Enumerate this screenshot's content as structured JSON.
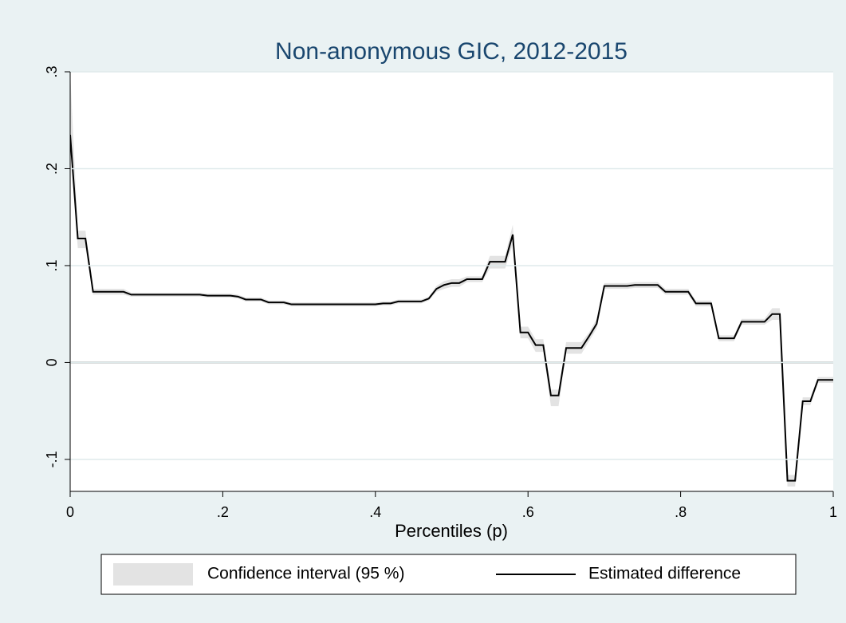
{
  "chart_data": {
    "type": "line",
    "title": "Non-anonymous GIC, 2012-2015",
    "x_label": "Percentiles (p)",
    "x": [
      0,
      0.01,
      0.02,
      0.03,
      0.04,
      0.05,
      0.06,
      0.07,
      0.08,
      0.09,
      0.1,
      0.11,
      0.12,
      0.13,
      0.14,
      0.15,
      0.16,
      0.17,
      0.18,
      0.19,
      0.2,
      0.21,
      0.22,
      0.23,
      0.24,
      0.25,
      0.26,
      0.27,
      0.28,
      0.29,
      0.3,
      0.31,
      0.32,
      0.33,
      0.34,
      0.35,
      0.36,
      0.37,
      0.38,
      0.39,
      0.4,
      0.41,
      0.42,
      0.43,
      0.44,
      0.45,
      0.46,
      0.47,
      0.48,
      0.49,
      0.5,
      0.51,
      0.52,
      0.53,
      0.54,
      0.55,
      0.56,
      0.57,
      0.58,
      0.59,
      0.6,
      0.61,
      0.62,
      0.63,
      0.64,
      0.65,
      0.66,
      0.67,
      0.68,
      0.69,
      0.7,
      0.71,
      0.72,
      0.73,
      0.74,
      0.75,
      0.76,
      0.77,
      0.78,
      0.79,
      0.8,
      0.81,
      0.82,
      0.83,
      0.84,
      0.85,
      0.86,
      0.87,
      0.88,
      0.89,
      0.9,
      0.91,
      0.92,
      0.93,
      0.94,
      0.95,
      0.96,
      0.97,
      0.98,
      0.99,
      1
    ],
    "series": [
      {
        "name": "Estimated difference",
        "color": "#000000",
        "values": [
          0.235,
          0.128,
          0.128,
          0.073,
          0.073,
          0.073,
          0.073,
          0.073,
          0.07,
          0.07,
          0.07,
          0.07,
          0.07,
          0.07,
          0.07,
          0.07,
          0.07,
          0.07,
          0.069,
          0.069,
          0.069,
          0.069,
          0.068,
          0.065,
          0.065,
          0.065,
          0.062,
          0.062,
          0.062,
          0.06,
          0.06,
          0.06,
          0.06,
          0.06,
          0.06,
          0.06,
          0.06,
          0.06,
          0.06,
          0.06,
          0.06,
          0.061,
          0.061,
          0.063,
          0.063,
          0.063,
          0.063,
          0.066,
          0.076,
          0.08,
          0.082,
          0.082,
          0.086,
          0.086,
          0.086,
          0.104,
          0.104,
          0.104,
          0.132,
          0.031,
          0.031,
          0.018,
          0.018,
          -0.034,
          -0.034,
          0.015,
          0.015,
          0.015,
          0.027,
          0.04,
          0.079,
          0.079,
          0.079,
          0.079,
          0.08,
          0.08,
          0.08,
          0.08,
          0.073,
          0.073,
          0.073,
          0.073,
          0.061,
          0.061,
          0.061,
          0.025,
          0.025,
          0.025,
          0.042,
          0.042,
          0.042,
          0.042,
          0.05,
          0.05,
          -0.122,
          -0.122,
          -0.04,
          -0.04,
          -0.018,
          -0.018,
          -0.018
        ]
      }
    ],
    "ci": {
      "name": "Confidence interval (95 %)",
      "color": "#e3e3e3",
      "upper": [
        0.3,
        0.136,
        0.136,
        0.076,
        0.076,
        0.076,
        0.076,
        0.076,
        0.072,
        0.072,
        0.072,
        0.072,
        0.072,
        0.072,
        0.072,
        0.072,
        0.072,
        0.072,
        0.071,
        0.071,
        0.071,
        0.071,
        0.07,
        0.067,
        0.067,
        0.067,
        0.064,
        0.064,
        0.064,
        0.062,
        0.062,
        0.062,
        0.062,
        0.062,
        0.062,
        0.062,
        0.062,
        0.062,
        0.062,
        0.062,
        0.062,
        0.063,
        0.063,
        0.065,
        0.065,
        0.065,
        0.065,
        0.068,
        0.079,
        0.084,
        0.086,
        0.086,
        0.089,
        0.089,
        0.089,
        0.11,
        0.11,
        0.11,
        0.142,
        0.037,
        0.037,
        0.024,
        0.024,
        -0.028,
        -0.028,
        0.021,
        0.021,
        0.021,
        0.031,
        0.045,
        0.082,
        0.082,
        0.082,
        0.082,
        0.083,
        0.083,
        0.083,
        0.083,
        0.076,
        0.076,
        0.076,
        0.076,
        0.064,
        0.064,
        0.064,
        0.028,
        0.028,
        0.028,
        0.045,
        0.045,
        0.045,
        0.045,
        0.056,
        0.056,
        -0.116,
        -0.116,
        -0.036,
        -0.036,
        -0.015,
        -0.015,
        -0.015
      ],
      "lower": [
        0.22,
        0.118,
        0.118,
        0.07,
        0.07,
        0.07,
        0.07,
        0.07,
        0.068,
        0.068,
        0.068,
        0.068,
        0.068,
        0.068,
        0.068,
        0.068,
        0.068,
        0.068,
        0.067,
        0.067,
        0.067,
        0.067,
        0.066,
        0.063,
        0.063,
        0.063,
        0.06,
        0.06,
        0.06,
        0.058,
        0.058,
        0.058,
        0.058,
        0.058,
        0.058,
        0.058,
        0.058,
        0.058,
        0.058,
        0.058,
        0.058,
        0.059,
        0.059,
        0.061,
        0.061,
        0.061,
        0.061,
        0.064,
        0.073,
        0.076,
        0.078,
        0.078,
        0.083,
        0.083,
        0.083,
        0.097,
        0.097,
        0.097,
        0.122,
        0.025,
        0.025,
        0.011,
        0.011,
        -0.045,
        -0.045,
        0.009,
        0.009,
        0.009,
        0.022,
        0.035,
        0.076,
        0.076,
        0.076,
        0.076,
        0.077,
        0.077,
        0.077,
        0.077,
        0.07,
        0.07,
        0.07,
        0.07,
        0.058,
        0.058,
        0.058,
        0.022,
        0.022,
        0.022,
        0.039,
        0.039,
        0.039,
        0.039,
        0.044,
        0.044,
        -0.128,
        -0.128,
        -0.044,
        -0.044,
        -0.021,
        -0.021,
        -0.021
      ]
    },
    "xlim": [
      0,
      1
    ],
    "xticks": [
      0,
      {
        "value": 0.2,
        "label": ".2"
      },
      {
        "value": 0.4,
        "label": ".4"
      },
      {
        "value": 0.6,
        "label": ".6"
      },
      {
        "value": 0.8,
        "label": ".8"
      },
      1
    ],
    "ylim": [
      -0.133,
      0.3
    ],
    "yticks": [
      {
        "value": -0.1,
        "label": "-.1"
      },
      0,
      {
        "value": 0.1,
        "label": ".1"
      },
      {
        "value": 0.2,
        "label": ".2"
      },
      {
        "value": 0.3,
        "label": ".3"
      }
    ],
    "hline": 0,
    "grid": true,
    "legend": "bottom"
  }
}
